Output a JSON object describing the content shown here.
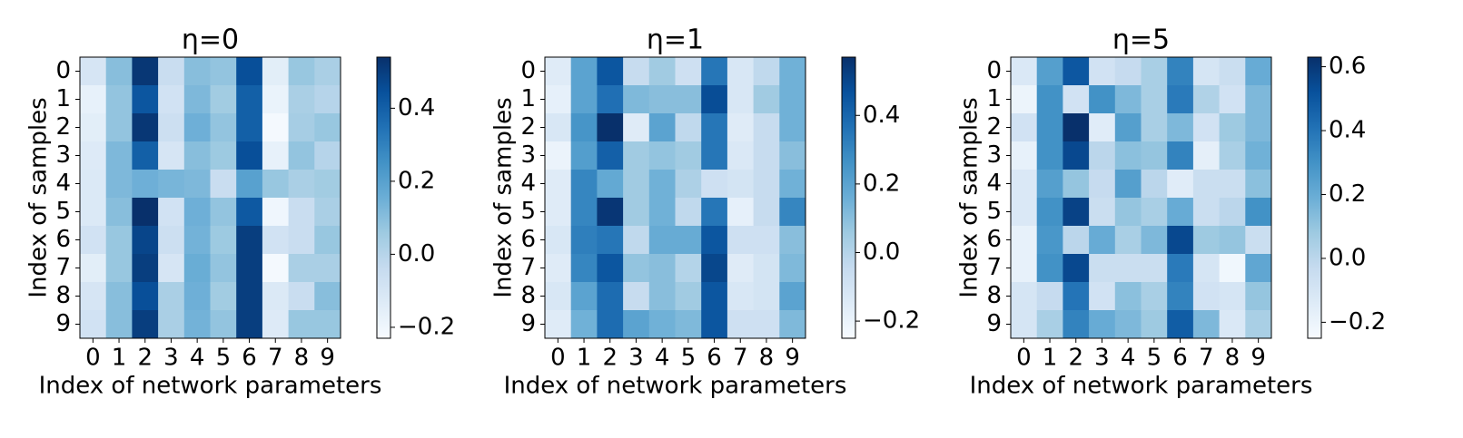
{
  "chart_data": [
    {
      "type": "heatmap",
      "title": "η=0",
      "x_label": "Index of network parameters",
      "y_label": "Index of samples",
      "categories": [
        "0",
        "1",
        "2",
        "3",
        "4",
        "5",
        "6",
        "7",
        "8",
        "9"
      ],
      "y_categories": [
        "0",
        "1",
        "2",
        "3",
        "4",
        "5",
        "6",
        "7",
        "8",
        "9"
      ],
      "colormap": "Blues",
      "vlim": [
        -0.23,
        0.54
      ],
      "cticks": [
        {
          "value": -0.2,
          "label": "−0.2"
        },
        {
          "value": 0,
          "label": "0.0"
        },
        0.2,
        0.4
      ],
      "values": [
        [
          -0.1,
          0.1,
          0.52,
          -0.05,
          0.1,
          0.08,
          0.45,
          -0.15,
          0.07,
          0.03
        ],
        [
          -0.17,
          0.08,
          0.43,
          -0.08,
          0.12,
          0.05,
          0.4,
          -0.18,
          0.03,
          0.0
        ],
        [
          -0.15,
          0.08,
          0.52,
          -0.06,
          0.15,
          0.08,
          0.4,
          -0.22,
          0.04,
          0.07
        ],
        [
          -0.13,
          0.12,
          0.4,
          -0.1,
          0.1,
          0.06,
          0.45,
          -0.17,
          0.08,
          0.0
        ],
        [
          -0.12,
          0.12,
          0.15,
          0.13,
          0.12,
          -0.05,
          0.2,
          0.07,
          0.03,
          0.05
        ],
        [
          -0.12,
          0.1,
          0.54,
          -0.08,
          0.15,
          0.08,
          0.42,
          -0.2,
          -0.05,
          0.03
        ],
        [
          -0.08,
          0.07,
          0.48,
          -0.06,
          0.14,
          0.06,
          0.5,
          -0.08,
          -0.05,
          0.07
        ],
        [
          -0.15,
          0.07,
          0.5,
          -0.1,
          0.16,
          0.08,
          0.5,
          -0.22,
          0.03,
          0.03
        ],
        [
          -0.1,
          0.1,
          0.45,
          0.03,
          0.15,
          0.05,
          0.5,
          -0.12,
          -0.05,
          0.1
        ],
        [
          -0.08,
          0.1,
          0.5,
          0.03,
          0.14,
          0.08,
          0.5,
          -0.13,
          0.07,
          0.07
        ]
      ]
    },
    {
      "type": "heatmap",
      "title": "η=1",
      "x_label": "Index of network parameters",
      "y_label": "Index of samples",
      "categories": [
        "0",
        "1",
        "2",
        "3",
        "4",
        "5",
        "6",
        "7",
        "8",
        "9"
      ],
      "y_categories": [
        "0",
        "1",
        "2",
        "3",
        "4",
        "5",
        "6",
        "7",
        "8",
        "9"
      ],
      "colormap": "Blues",
      "vlim": [
        -0.25,
        0.57
      ],
      "cticks": [
        {
          "value": -0.2,
          "label": "−0.2"
        },
        {
          "value": 0,
          "label": "0.0"
        },
        0.2,
        0.4
      ],
      "values": [
        [
          -0.15,
          0.2,
          0.45,
          -0.05,
          0.05,
          -0.08,
          0.35,
          -0.12,
          -0.03,
          0.15
        ],
        [
          -0.18,
          0.2,
          0.37,
          0.12,
          0.1,
          0.1,
          0.48,
          -0.12,
          0.05,
          0.15
        ],
        [
          -0.12,
          0.25,
          0.57,
          -0.15,
          0.2,
          -0.03,
          0.35,
          -0.15,
          -0.05,
          0.15
        ],
        [
          -0.2,
          0.22,
          0.42,
          0.05,
          0.08,
          0.05,
          0.35,
          -0.13,
          -0.05,
          0.1
        ],
        [
          -0.15,
          0.3,
          0.18,
          0.05,
          0.15,
          0.02,
          -0.08,
          -0.1,
          -0.05,
          0.15
        ],
        [
          -0.15,
          0.3,
          0.55,
          0.05,
          0.15,
          -0.03,
          0.35,
          -0.18,
          -0.05,
          0.3
        ],
        [
          -0.12,
          0.32,
          0.35,
          -0.03,
          0.17,
          0.17,
          0.45,
          -0.08,
          -0.08,
          0.1
        ],
        [
          -0.15,
          0.3,
          0.45,
          0.08,
          0.1,
          0.0,
          0.5,
          -0.15,
          -0.1,
          0.12
        ],
        [
          -0.12,
          0.2,
          0.38,
          -0.05,
          0.1,
          0.05,
          0.45,
          -0.12,
          -0.1,
          0.2
        ],
        [
          -0.15,
          0.15,
          0.38,
          0.2,
          0.15,
          0.12,
          0.45,
          -0.08,
          -0.08,
          0.12
        ]
      ]
    },
    {
      "type": "heatmap",
      "title": "η=5",
      "x_label": "Index of network parameters",
      "y_label": "Index of samples",
      "categories": [
        "0",
        "1",
        "2",
        "3",
        "4",
        "5",
        "6",
        "7",
        "8",
        "9"
      ],
      "y_categories": [
        "0",
        "1",
        "2",
        "3",
        "4",
        "5",
        "6",
        "7",
        "8",
        "9"
      ],
      "colormap": "Blues",
      "vlim": [
        -0.25,
        0.63
      ],
      "cticks": [
        {
          "value": -0.2,
          "label": "−0.2"
        },
        {
          "value": 0,
          "label": "0.0"
        },
        0.2,
        0.4,
        0.6
      ],
      "values": [
        [
          -0.12,
          0.25,
          0.5,
          -0.08,
          -0.03,
          0.05,
          0.35,
          -0.1,
          -0.05,
          0.2
        ],
        [
          -0.2,
          0.3,
          -0.08,
          0.3,
          0.15,
          0.05,
          0.38,
          0.03,
          -0.08,
          0.15
        ],
        [
          -0.08,
          0.3,
          0.63,
          -0.15,
          0.25,
          0.05,
          0.15,
          -0.08,
          0.08,
          0.15
        ],
        [
          -0.18,
          0.3,
          0.55,
          0.0,
          0.12,
          0.1,
          0.35,
          -0.17,
          0.05,
          0.18
        ],
        [
          -0.12,
          0.25,
          0.1,
          -0.03,
          0.25,
          0.0,
          -0.15,
          -0.05,
          -0.05,
          0.12
        ],
        [
          -0.12,
          0.3,
          0.57,
          -0.05,
          0.1,
          0.05,
          0.2,
          -0.05,
          0.0,
          0.3
        ],
        [
          -0.18,
          0.28,
          0.0,
          0.2,
          0.05,
          0.15,
          0.55,
          0.08,
          0.1,
          -0.05
        ],
        [
          -0.18,
          0.3,
          0.55,
          -0.05,
          -0.05,
          -0.05,
          0.38,
          -0.1,
          -0.22,
          0.22
        ],
        [
          -0.1,
          -0.03,
          0.4,
          -0.08,
          0.12,
          0.05,
          0.35,
          -0.08,
          -0.1,
          0.1
        ],
        [
          -0.1,
          0.05,
          0.35,
          0.2,
          0.15,
          0.08,
          0.48,
          0.15,
          -0.12,
          0.05
        ]
      ]
    }
  ]
}
